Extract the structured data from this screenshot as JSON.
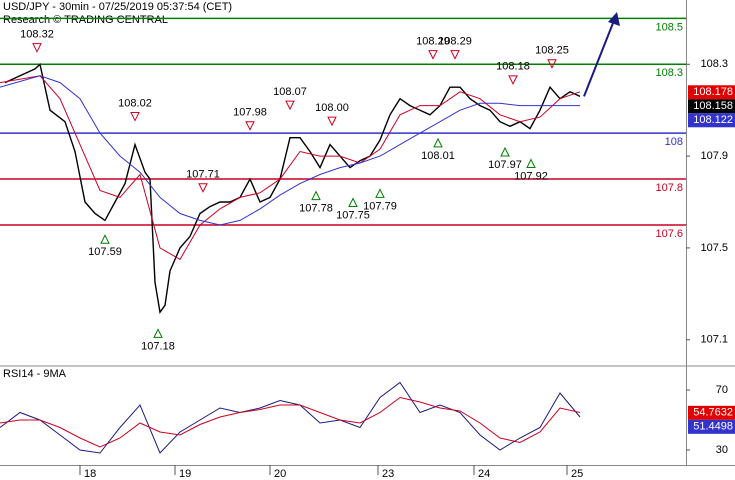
{
  "chart_data": [
    {
      "type": "line",
      "title": "USD/JPY - 30min - 07/25/2019 05:37:54 (CET)",
      "subtitle": "Research © TRADING CENTRAL",
      "xlim": [
        0,
        68.6
      ],
      "ylim": [
        106.99,
        108.58
      ],
      "yticks": [
        108.3,
        107.9,
        107.5,
        107.1
      ],
      "series": [
        {
          "color": "#000000",
          "x": [
            0.5,
            3.5,
            4,
            5,
            6.5,
            7.5,
            8.5,
            9.5,
            10.5,
            11.5,
            12.5,
            13.5,
            14.5,
            15,
            15.5,
            16,
            16.5,
            17,
            18,
            19,
            20,
            21,
            22,
            23,
            24,
            25,
            26,
            27,
            28,
            29,
            30,
            31,
            32,
            33,
            34,
            35,
            36,
            37,
            38,
            39,
            40,
            41,
            42,
            43,
            44,
            45,
            46,
            47,
            48,
            49,
            50,
            51,
            52,
            53,
            54,
            55,
            56,
            57,
            58
          ],
          "values": [
            108.22,
            108.28,
            108.3,
            108.1,
            108.05,
            107.92,
            107.7,
            107.65,
            107.62,
            107.7,
            107.78,
            107.95,
            107.83,
            107.8,
            107.35,
            107.22,
            107.25,
            107.4,
            107.5,
            107.55,
            107.65,
            107.68,
            107.7,
            107.7,
            107.72,
            107.8,
            107.7,
            107.72,
            107.8,
            107.98,
            107.98,
            107.92,
            107.85,
            107.95,
            107.9,
            107.85,
            107.88,
            107.9,
            107.97,
            108.08,
            108.15,
            108.12,
            108.1,
            108.08,
            108.12,
            108.2,
            108.2,
            108.15,
            108.12,
            108.1,
            108.05,
            108.03,
            108.05,
            108.02,
            108.1,
            108.2,
            108.15,
            108.18,
            108.16
          ]
        },
        {
          "color": "#cc0022",
          "x": [
            0,
            4,
            6,
            8,
            10,
            12,
            14,
            16,
            18,
            20,
            22,
            24,
            26,
            28,
            30,
            32,
            34,
            36,
            38,
            40,
            42,
            44,
            46,
            48,
            50,
            52,
            54,
            56,
            58
          ],
          "values": [
            108.22,
            108.25,
            108.15,
            107.95,
            107.75,
            107.72,
            107.82,
            107.5,
            107.45,
            107.6,
            107.67,
            107.72,
            107.74,
            107.8,
            107.92,
            107.9,
            107.9,
            107.87,
            107.93,
            108.08,
            108.12,
            108.12,
            108.18,
            108.15,
            108.08,
            108.05,
            108.07,
            108.15,
            108.18
          ]
        },
        {
          "color": "#3333cc",
          "x": [
            0,
            4,
            6,
            8,
            10,
            12,
            14,
            16,
            18,
            20,
            22,
            24,
            26,
            28,
            30,
            32,
            34,
            36,
            38,
            40,
            42,
            44,
            46,
            48,
            50,
            52,
            54,
            56,
            58
          ],
          "values": [
            108.2,
            108.25,
            108.22,
            108.15,
            108.0,
            107.9,
            107.83,
            107.72,
            107.65,
            107.62,
            107.6,
            107.62,
            107.67,
            107.73,
            107.78,
            107.82,
            107.85,
            107.87,
            107.9,
            107.95,
            108.0,
            108.05,
            108.1,
            108.13,
            108.13,
            108.12,
            108.12,
            108.12,
            108.12
          ]
        }
      ],
      "levels": [
        {
          "value": 108.5,
          "color": "#008000"
        },
        {
          "value": 108.3,
          "color": "#008000"
        },
        {
          "value": 108,
          "color": "#3333cc"
        },
        {
          "value": 107.8,
          "color": "#cc0022"
        },
        {
          "value": 107.6,
          "color": "#cc0022"
        }
      ],
      "peaks": {
        "color": "#cc0022",
        "x": [
          3.7,
          13.5,
          20.3,
          25,
          29,
          33.2,
          43.3,
          45.5,
          51.3,
          55.2
        ],
        "values": [
          108.32,
          108.02,
          107.71,
          107.98,
          108.07,
          108,
          108.29,
          108.29,
          108.18,
          108.25
        ],
        "value_labels": [
          "108.32",
          "108.02",
          "107.71",
          "107.98",
          "108.07",
          "108.00",
          "108.29",
          "108.29",
          "108.18",
          "108.25"
        ]
      },
      "troughs": {
        "color": "#008000",
        "x": [
          10.5,
          15.8,
          31.6,
          35.3,
          38,
          43.8,
          50.5,
          53.1
        ],
        "values": [
          107.59,
          107.18,
          107.78,
          107.75,
          107.79,
          108.01,
          107.97,
          107.92
        ],
        "value_labels": [
          "107.59",
          "107.18",
          "107.78",
          "107.75",
          "107.79",
          "108.01",
          "107.97",
          "107.92"
        ]
      },
      "last_values": [
        {
          "value": 108.178,
          "color": "#e00000"
        },
        {
          "value": 108.158,
          "color": "#000000"
        },
        {
          "value": 108.122,
          "color": "#3333cc"
        }
      ]
    },
    {
      "type": "line",
      "title": "RSI14 - 9MA",
      "xlim": [
        0,
        68.6
      ],
      "ylim": [
        20,
        85.3
      ],
      "yticks": [
        70,
        30
      ],
      "xticks": [
        {
          "value": 8,
          "label": "18"
        },
        {
          "value": 17.5,
          "label": "19"
        },
        {
          "value": 27,
          "label": "20"
        },
        {
          "value": 37.8,
          "label": "23"
        },
        {
          "value": 47.4,
          "label": "24"
        },
        {
          "value": 56.7,
          "label": "25"
        }
      ],
      "series": [
        {
          "color": "#1a1a80",
          "x": [
            0,
            2,
            4,
            6,
            8,
            10,
            12,
            14,
            16,
            18,
            20,
            22,
            24,
            26,
            28,
            30,
            32,
            34,
            36,
            38,
            40,
            42,
            44,
            46,
            48,
            50,
            52,
            54,
            56,
            58
          ],
          "values": [
            45,
            55,
            50,
            40,
            30,
            28,
            45,
            60,
            28,
            42,
            50,
            58,
            55,
            58,
            63,
            60,
            48,
            50,
            45,
            65,
            75,
            55,
            60,
            55,
            40,
            30,
            38,
            45,
            68,
            52
          ]
        },
        {
          "color": "#cc0022",
          "x": [
            0,
            2,
            4,
            6,
            8,
            10,
            12,
            14,
            16,
            18,
            20,
            22,
            24,
            26,
            28,
            30,
            32,
            34,
            36,
            38,
            40,
            42,
            44,
            46,
            48,
            50,
            52,
            54,
            56,
            58
          ],
          "values": [
            48,
            50,
            50,
            45,
            38,
            32,
            38,
            48,
            42,
            40,
            47,
            52,
            55,
            57,
            60,
            60,
            55,
            50,
            48,
            55,
            65,
            62,
            58,
            56,
            48,
            38,
            35,
            42,
            58,
            55
          ]
        }
      ],
      "last_values": [
        {
          "value": 54.7632,
          "color": "#e00000"
        },
        {
          "value": 51.4498,
          "color": "#3333cc"
        }
      ]
    }
  ]
}
